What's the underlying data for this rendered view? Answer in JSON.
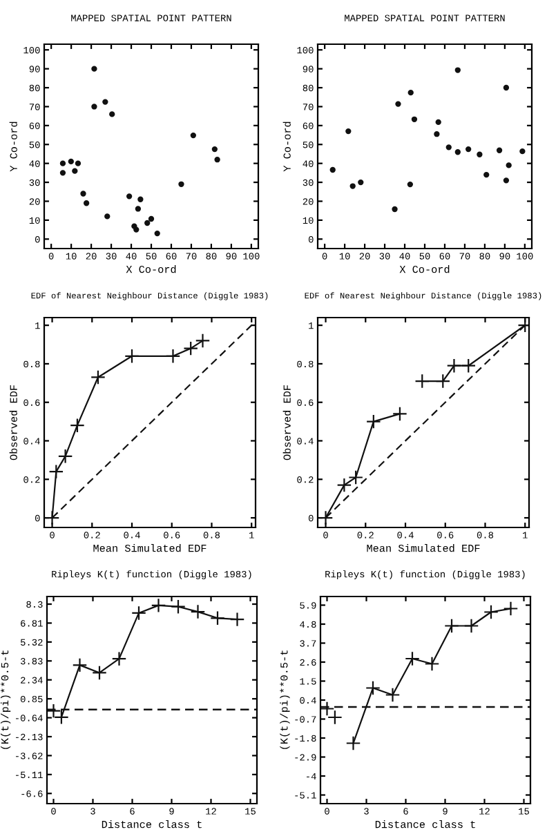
{
  "chart_data": [
    {
      "type": "scatter",
      "title": "MAPPED SPATIAL POINT PATTERN",
      "xlabel": "X Co-ord",
      "ylabel": "Y Co-ord",
      "xlim": [
        -3.5,
        103.5
      ],
      "ylim": [
        -5,
        103
      ],
      "xticks": [
        0,
        10,
        20,
        30,
        40,
        50,
        60,
        70,
        80,
        90,
        100
      ],
      "yticks": [
        0,
        10,
        20,
        30,
        40,
        50,
        60,
        70,
        80,
        90,
        100
      ],
      "grid": false,
      "marker": "circle",
      "series": [
        {
          "color": "#111111",
          "x": [
            5.8,
            5.8,
            9.9,
            11.8,
            13.4,
            16,
            17.6,
            21.5,
            21.5,
            27,
            30.4,
            28,
            39,
            41.5,
            42.5,
            44.6,
            43.4,
            48,
            50,
            53,
            65,
            71,
            81.7,
            83
          ],
          "values": [
            40,
            35,
            41,
            36,
            40,
            24,
            19,
            90,
            70,
            72.5,
            66,
            12,
            22.6,
            6.8,
            5,
            21,
            16,
            8.5,
            10.7,
            3,
            29,
            54.8,
            47.5,
            42
          ]
        }
      ]
    },
    {
      "type": "scatter",
      "title": "MAPPED SPATIAL POINT PATTERN",
      "xlabel": "X Co-ord",
      "ylabel": "Y Co-ord",
      "xlim": [
        -3.5,
        103.5
      ],
      "ylim": [
        -5,
        103
      ],
      "xticks": [
        0,
        10,
        20,
        30,
        40,
        50,
        60,
        70,
        80,
        90,
        100
      ],
      "yticks": [
        0,
        10,
        20,
        30,
        40,
        50,
        60,
        70,
        80,
        90,
        100
      ],
      "grid": false,
      "marker": "circle",
      "series": [
        {
          "color": "#111111",
          "x": [
            4,
            11.8,
            14,
            18,
            35,
            36.7,
            42.7,
            43,
            44.8,
            56.8,
            56,
            62,
            66.5,
            71.8,
            77.4,
            87.3,
            80.8,
            90.7,
            98.8,
            66.5,
            90.7,
            92
          ],
          "values": [
            36.6,
            57,
            28,
            30,
            15.8,
            71.4,
            28.9,
            77.4,
            63.3,
            61.8,
            55.5,
            48.5,
            46,
            47.5,
            44.7,
            46.9,
            34,
            31,
            46.4,
            89.3,
            80,
            39
          ]
        }
      ]
    },
    {
      "type": "line",
      "title": "EDF of Nearest Neighbour Distance (Diggle 1983)",
      "xlabel": "Mean Simulated EDF",
      "ylabel": "Observed EDF",
      "xlim": [
        -0.04,
        1.02
      ],
      "ylim": [
        -0.05,
        1.04
      ],
      "xticks": [
        0,
        0.2,
        0.4,
        0.6,
        0.8,
        1
      ],
      "yticks": [
        0,
        0.2,
        0.4,
        0.6,
        0.8,
        1
      ],
      "grid": false,
      "series": [
        {
          "color": "#111111",
          "marker": "cross",
          "line_style": "solid",
          "x": [
            0,
            0.02,
            0.066,
            0.126,
            0.23,
            0.4,
            0.606,
            0.695,
            0.755
          ],
          "values": [
            0,
            0.24,
            0.32,
            0.48,
            0.73,
            0.84,
            0.84,
            0.88,
            0.92
          ]
        },
        {
          "color": "#111111",
          "marker": "none",
          "line_style": "dashed",
          "x": [
            0,
            1
          ],
          "values": [
            0,
            1
          ]
        }
      ]
    },
    {
      "type": "line",
      "title": "EDF of Nearest Neighbour Distance (Diggle 1983)",
      "xlabel": "Mean Simulated EDF",
      "ylabel": "Observed EDF",
      "xlim": [
        -0.04,
        1.02
      ],
      "ylim": [
        -0.05,
        1.04
      ],
      "xticks": [
        0,
        0.2,
        0.4,
        0.6,
        0.8,
        1
      ],
      "yticks": [
        0,
        0.2,
        0.4,
        0.6,
        0.8,
        1
      ],
      "grid": false,
      "series": [
        {
          "color": "#111111",
          "marker": "cross",
          "line_style": "solid",
          "x": [
            0,
            0.093,
            0.151,
            0.24,
            0.372
          ],
          "values": [
            0,
            0.17,
            0.21,
            0.5,
            0.54
          ]
        },
        {
          "color": "#111111",
          "marker": "cross",
          "line_style": "solid",
          "x": [
            0.484,
            0.588,
            0.644,
            0.716,
            1
          ],
          "values": [
            0.71,
            0.71,
            0.79,
            0.79,
            1
          ]
        },
        {
          "color": "#111111",
          "marker": "none",
          "line_style": "dashed",
          "x": [
            0,
            1
          ],
          "values": [
            0,
            1
          ]
        }
      ]
    },
    {
      "type": "line",
      "title": "Ripleys K(t) function (Diggle 1983)",
      "xlabel": "Distance class t",
      "ylabel": "(K(t)/pi)**0.5-t",
      "xlim": [
        -0.5,
        15.5
      ],
      "ylim": [
        -7.4,
        8.9
      ],
      "xticks": [
        0,
        3,
        6,
        9,
        12,
        15
      ],
      "yticks": [
        8.3,
        6.81,
        5.32,
        3.83,
        2.34,
        0.85,
        -0.64,
        -2.13,
        -3.62,
        -5.11,
        -6.6
      ],
      "grid": false,
      "series": [
        {
          "type": "scatter",
          "color": "#111111",
          "marker": "cross",
          "x": [
            0
          ],
          "values": [
            -0.1
          ]
        },
        {
          "color": "#111111",
          "marker": "cross",
          "line_style": "solid",
          "x": [
            0.6,
            2,
            3.5,
            5,
            6.5,
            8,
            9.5,
            11,
            12.5,
            14
          ],
          "values": [
            -0.6,
            3.5,
            2.9,
            4,
            7.6,
            8.2,
            8.1,
            7.7,
            7.2,
            7.1
          ]
        }
      ],
      "ref_lines": [
        {
          "axis": "y",
          "value": 0,
          "line_style": "dashed",
          "color": "#111111"
        }
      ]
    },
    {
      "type": "line",
      "title": "Ripleys K(t) function (Diggle 1983)",
      "xlabel": "Distance class t",
      "ylabel": "(K(t)/pi)**0.5-t",
      "xlim": [
        -0.5,
        15.5
      ],
      "ylim": [
        -5.6,
        6.4
      ],
      "xticks": [
        0,
        3,
        6,
        9,
        12,
        15
      ],
      "yticks": [
        5.9,
        4.8,
        3.7,
        2.6,
        1.5,
        0.4,
        -0.7,
        -1.8,
        -2.9,
        -4,
        -5.1
      ],
      "grid": false,
      "series": [
        {
          "type": "scatter",
          "color": "#111111",
          "marker": "cross",
          "x": [
            0,
            0.6
          ],
          "values": [
            -0.1,
            -0.6
          ]
        },
        {
          "color": "#111111",
          "marker": "cross",
          "line_style": "solid",
          "x": [
            2,
            3.5,
            5,
            6.5,
            8,
            9.5,
            11,
            12.5,
            14
          ],
          "values": [
            -2.1,
            1.1,
            0.7,
            2.8,
            2.5,
            4.7,
            4.7,
            5.5,
            5.7
          ]
        }
      ],
      "ref_lines": [
        {
          "axis": "y",
          "value": 0,
          "line_style": "dashed",
          "color": "#111111"
        }
      ]
    }
  ]
}
